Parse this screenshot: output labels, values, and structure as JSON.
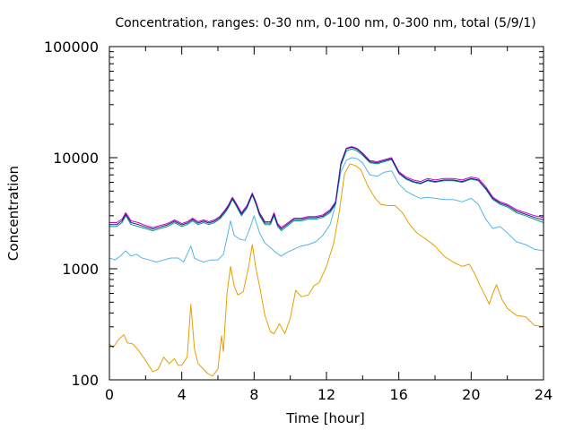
{
  "chart_data": {
    "type": "line",
    "title": "Concentration, ranges: 0-30 nm, 0-100 nm, 0-300 nm, total (5/9/1)",
    "xlabel": "Time [hour]",
    "ylabel": "Concentration",
    "xlim": [
      0,
      24
    ],
    "ylim": [
      100,
      100000
    ],
    "y_scale": "log",
    "grid": false,
    "x_ticks": [
      0,
      4,
      8,
      12,
      16,
      20,
      24
    ],
    "x_tick_labels": [
      "0",
      "4",
      "8",
      "12",
      "16",
      "20",
      "24"
    ],
    "y_ticks": [
      100,
      1000,
      10000,
      100000
    ],
    "y_tick_labels": [
      "100",
      "1000",
      "10000",
      "100000"
    ],
    "series": [
      {
        "color": "#e69f00",
        "x": [
          0,
          0.2,
          0.5,
          0.8,
          1.0,
          1.3,
          1.6,
          2.0,
          2.4,
          2.7,
          3.0,
          3.3,
          3.6,
          3.8,
          4.0,
          4.3,
          4.5,
          4.7,
          4.9,
          5.1,
          5.4,
          5.7,
          6.0,
          6.2,
          6.3,
          6.5,
          6.7,
          6.9,
          7.1,
          7.4,
          7.7,
          7.9,
          8.1,
          8.3,
          8.6,
          8.9,
          9.1,
          9.4,
          9.7,
          10.0,
          10.3,
          10.6,
          11.0,
          11.3,
          11.6,
          12.0,
          12.4,
          12.7,
          13.0,
          13.3,
          13.6,
          13.9,
          14.3,
          14.7,
          15.0,
          15.4,
          15.8,
          16.2,
          16.6,
          17.0,
          17.5,
          18.0,
          18.5,
          19.0,
          19.5,
          19.9,
          20.2,
          20.5,
          20.8,
          21.0,
          21.2,
          21.4,
          21.7,
          22.0,
          22.5,
          23.0,
          23.5,
          24.0
        ],
        "values": [
          210,
          195,
          230,
          255,
          215,
          210,
          185,
          150,
          118,
          125,
          160,
          140,
          155,
          135,
          135,
          160,
          480,
          190,
          140,
          130,
          115,
          108,
          125,
          250,
          180,
          600,
          1050,
          700,
          580,
          620,
          1050,
          1650,
          1000,
          700,
          380,
          270,
          260,
          320,
          260,
          360,
          640,
          560,
          580,
          700,
          750,
          1050,
          1700,
          3200,
          7200,
          8800,
          8500,
          7800,
          5500,
          4300,
          3800,
          3700,
          3700,
          3200,
          2500,
          2100,
          1850,
          1600,
          1300,
          1150,
          1050,
          1100,
          900,
          700,
          560,
          480,
          600,
          720,
          530,
          440,
          380,
          370,
          310,
          300
        ]
      },
      {
        "color": "#56b4e9",
        "x": [
          0,
          0.3,
          0.6,
          0.9,
          1.2,
          1.5,
          1.8,
          2.2,
          2.6,
          3.0,
          3.4,
          3.8,
          4.1,
          4.3,
          4.5,
          4.7,
          4.9,
          5.2,
          5.6,
          6.0,
          6.3,
          6.5,
          6.7,
          6.9,
          7.2,
          7.5,
          7.8,
          8.0,
          8.3,
          8.6,
          8.9,
          9.2,
          9.5,
          9.8,
          10.2,
          10.6,
          11.0,
          11.4,
          11.8,
          12.2,
          12.5,
          12.8,
          13.1,
          13.4,
          13.7,
          14.0,
          14.4,
          14.8,
          15.2,
          15.6,
          16.0,
          16.4,
          16.8,
          17.2,
          17.6,
          18.0,
          18.5,
          19.0,
          19.5,
          20.0,
          20.4,
          20.8,
          21.2,
          21.6,
          22.0,
          22.5,
          23.0,
          23.5,
          24.0
        ],
        "values": [
          1250,
          1200,
          1300,
          1450,
          1300,
          1350,
          1250,
          1200,
          1150,
          1200,
          1250,
          1250,
          1150,
          1350,
          1600,
          1250,
          1200,
          1150,
          1200,
          1200,
          1350,
          1900,
          2700,
          2000,
          1850,
          1800,
          2400,
          3000,
          2100,
          1700,
          1550,
          1400,
          1300,
          1400,
          1500,
          1600,
          1650,
          1750,
          2000,
          2500,
          3800,
          7500,
          9500,
          10000,
          9800,
          9000,
          7000,
          6800,
          7400,
          7600,
          5800,
          5000,
          4600,
          4300,
          4400,
          4300,
          4200,
          4200,
          4000,
          4300,
          3800,
          2800,
          2300,
          2400,
          2100,
          1750,
          1650,
          1500,
          1450
        ]
      },
      {
        "color": "#009e73",
        "x": [
          0,
          0.4,
          0.7,
          0.9,
          1.2,
          1.6,
          2.0,
          2.4,
          2.8,
          3.2,
          3.6,
          4.0,
          4.3,
          4.6,
          4.9,
          5.2,
          5.5,
          5.8,
          6.1,
          6.4,
          6.6,
          6.8,
          7.0,
          7.3,
          7.6,
          7.9,
          8.1,
          8.3,
          8.6,
          8.9,
          9.1,
          9.3,
          9.5,
          9.8,
          10.2,
          10.6,
          11.0,
          11.4,
          11.8,
          12.2,
          12.5,
          12.8,
          13.1,
          13.4,
          13.7,
          14.0,
          14.4,
          14.8,
          15.2,
          15.6,
          16.0,
          16.4,
          16.8,
          17.2,
          17.6,
          18.0,
          18.5,
          19.0,
          19.5,
          20.0,
          20.4,
          20.8,
          21.2,
          21.6,
          22.0,
          22.5,
          23.0,
          23.5,
          24.0
        ],
        "values": [
          2400,
          2400,
          2600,
          3000,
          2500,
          2400,
          2300,
          2200,
          2300,
          2400,
          2600,
          2400,
          2500,
          2700,
          2500,
          2600,
          2500,
          2600,
          2800,
          3200,
          3600,
          4200,
          3700,
          3000,
          3500,
          4600,
          3800,
          3000,
          2500,
          2500,
          3000,
          2400,
          2200,
          2400,
          2700,
          2700,
          2800,
          2800,
          2900,
          3200,
          3800,
          8500,
          11500,
          12000,
          11500,
          10500,
          9000,
          8800,
          9200,
          9600,
          7200,
          6400,
          6000,
          5800,
          6200,
          6000,
          6200,
          6200,
          6000,
          6400,
          6200,
          5200,
          4200,
          3800,
          3600,
          3200,
          3000,
          2800,
          2600
        ]
      },
      {
        "color": "#cc00cc",
        "x": [
          0,
          0.4,
          0.7,
          0.9,
          1.2,
          1.6,
          2.0,
          2.4,
          2.8,
          3.2,
          3.6,
          4.0,
          4.3,
          4.6,
          4.9,
          5.2,
          5.5,
          5.8,
          6.1,
          6.4,
          6.6,
          6.8,
          7.0,
          7.3,
          7.6,
          7.9,
          8.1,
          8.3,
          8.6,
          8.9,
          9.1,
          9.3,
          9.5,
          9.8,
          10.2,
          10.6,
          11.0,
          11.4,
          11.8,
          12.2,
          12.5,
          12.8,
          13.1,
          13.4,
          13.7,
          14.0,
          14.4,
          14.8,
          15.2,
          15.6,
          16.0,
          16.4,
          16.8,
          17.2,
          17.6,
          18.0,
          18.5,
          19.0,
          19.5,
          20.0,
          20.4,
          20.8,
          21.2,
          21.6,
          22.0,
          22.5,
          23.0,
          23.5,
          24.0
        ],
        "values": [
          2600,
          2600,
          2800,
          3200,
          2700,
          2600,
          2450,
          2350,
          2450,
          2550,
          2750,
          2550,
          2650,
          2850,
          2650,
          2750,
          2650,
          2750,
          2950,
          3400,
          3800,
          4400,
          3900,
          3200,
          3700,
          4800,
          4000,
          3200,
          2650,
          2650,
          3200,
          2550,
          2350,
          2550,
          2850,
          2850,
          2950,
          2950,
          3050,
          3400,
          4000,
          9000,
          12200,
          12600,
          12100,
          11000,
          9400,
          9200,
          9600,
          10000,
          7500,
          6700,
          6300,
          6100,
          6500,
          6300,
          6500,
          6500,
          6300,
          6700,
          6500,
          5500,
          4400,
          4000,
          3800,
          3400,
          3200,
          3000,
          2900
        ]
      },
      {
        "color": "#1f1f8f",
        "x": [
          0,
          0.4,
          0.7,
          0.9,
          1.2,
          1.6,
          2.0,
          2.4,
          2.8,
          3.2,
          3.6,
          4.0,
          4.3,
          4.6,
          4.9,
          5.2,
          5.5,
          5.8,
          6.1,
          6.4,
          6.6,
          6.8,
          7.0,
          7.3,
          7.6,
          7.9,
          8.1,
          8.3,
          8.6,
          8.9,
          9.1,
          9.3,
          9.5,
          9.8,
          10.2,
          10.6,
          11.0,
          11.4,
          11.8,
          12.2,
          12.5,
          12.8,
          13.1,
          13.4,
          13.7,
          14.0,
          14.4,
          14.8,
          15.2,
          15.6,
          16.0,
          16.4,
          16.8,
          17.2,
          17.6,
          18.0,
          18.5,
          19.0,
          19.5,
          20.0,
          20.4,
          20.8,
          21.2,
          21.6,
          22.0,
          22.5,
          23.0,
          23.5,
          24.0
        ],
        "values": [
          2500,
          2500,
          2700,
          3100,
          2600,
          2500,
          2380,
          2280,
          2380,
          2480,
          2680,
          2480,
          2580,
          2780,
          2580,
          2680,
          2580,
          2680,
          2880,
          3300,
          3700,
          4300,
          3800,
          3100,
          3600,
          4700,
          3900,
          3100,
          2580,
          2580,
          3100,
          2480,
          2280,
          2480,
          2780,
          2780,
          2880,
          2880,
          2980,
          3300,
          3900,
          8800,
          12000,
          12400,
          11900,
          10800,
          9200,
          9000,
          9400,
          9800,
          7300,
          6500,
          6100,
          5900,
          6300,
          6100,
          6300,
          6300,
          6100,
          6500,
          6300,
          5300,
          4300,
          3900,
          3700,
          3300,
          3100,
          2900,
          2750
        ]
      }
    ]
  }
}
